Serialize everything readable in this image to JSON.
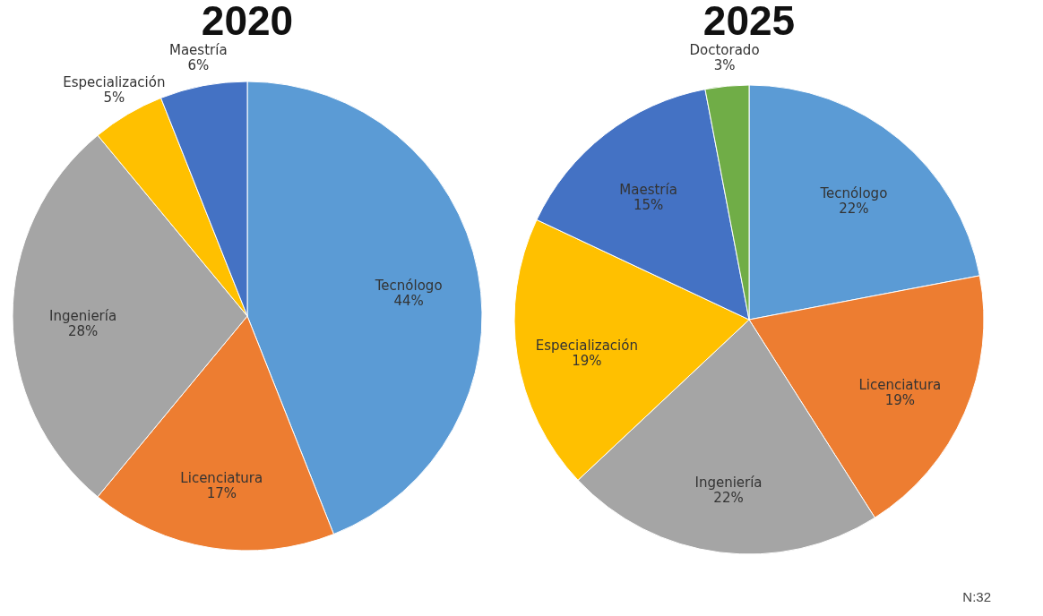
{
  "chart_data": [
    {
      "type": "pie",
      "title": "2020",
      "categories": [
        "Tecnólogo",
        "Licenciatura",
        "Ingeniería",
        "Especialización",
        "Maestría"
      ],
      "values": [
        44,
        17,
        28,
        5,
        6
      ],
      "colors": [
        "#5b9bd5",
        "#ed7d31",
        "#a5a5a5",
        "#ffc000",
        "#4472c4"
      ],
      "value_labels": [
        "44%",
        "17%",
        "28%",
        "5%",
        "6%"
      ],
      "legend": false
    },
    {
      "type": "pie",
      "title": "2025",
      "categories": [
        "Tecnólogo",
        "Licenciatura",
        "Ingeniería",
        "Especialización",
        "Maestría",
        "Doctorado"
      ],
      "values": [
        22,
        19,
        22,
        19,
        15,
        3
      ],
      "colors": [
        "#5b9bd5",
        "#ed7d31",
        "#a5a5a5",
        "#ffc000",
        "#4472c4",
        "#70ad47"
      ],
      "value_labels": [
        "22%",
        "19%",
        "22%",
        "19%",
        "15%",
        "3%"
      ],
      "legend": false,
      "annotations": [
        "N:32"
      ]
    }
  ]
}
